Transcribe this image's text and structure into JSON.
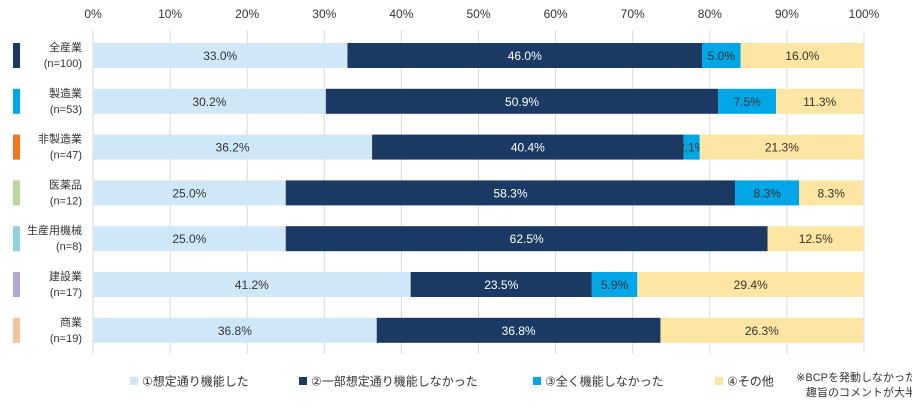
{
  "chart_data": {
    "type": "stacked-bar-horizontal",
    "xlim": [
      0,
      100
    ],
    "x_ticks": [
      "0%",
      "10%",
      "20%",
      "30%",
      "40%",
      "50%",
      "60%",
      "70%",
      "80%",
      "90%",
      "100%"
    ],
    "grid": true,
    "legend_position": "bottom",
    "categories": [
      {
        "name": "全産業",
        "n": "(n=100)",
        "marker_color": "#1b3a63"
      },
      {
        "name": "製造業",
        "n": "(n=53)",
        "marker_color": "#00a6e6"
      },
      {
        "name": "非製造業",
        "n": "(n=47)",
        "marker_color": "#f07820"
      },
      {
        "name": "医薬品",
        "n": "(n=12)",
        "marker_color": "#b9d79a"
      },
      {
        "name": "生産用機械",
        "n": "(n=8)",
        "marker_color": "#8fd3de"
      },
      {
        "name": "建設業",
        "n": "(n=17)",
        "marker_color": "#b3a6d4"
      },
      {
        "name": "商業",
        "n": "(n=19)",
        "marker_color": "#f5c49a"
      }
    ],
    "series": [
      {
        "name": "①想定通り機能した",
        "color": "#cfe7f7",
        "label_color": "#333333",
        "values": [
          33.0,
          30.2,
          36.2,
          25.0,
          25.0,
          41.2,
          36.8
        ]
      },
      {
        "name": "②一部想定通り機能しなかった",
        "color": "#1b3a63",
        "label_color": "#ffffff",
        "values": [
          46.0,
          50.9,
          40.4,
          58.3,
          62.5,
          23.5,
          36.8
        ]
      },
      {
        "name": "③全く機能しなかった",
        "color": "#00a6e6",
        "label_color": "#333333",
        "values": [
          5.0,
          7.5,
          2.1,
          8.3,
          0,
          5.9,
          0
        ]
      },
      {
        "name": "④その他",
        "color": "#fde5a3",
        "label_color": "#333333",
        "values": [
          16.0,
          11.3,
          21.3,
          8.3,
          12.5,
          29.4,
          26.3
        ]
      }
    ],
    "data_labels": [
      [
        "33.0%",
        "46.0%",
        "5.0%",
        "16.0%"
      ],
      [
        "30.2%",
        "50.9%",
        "7.5%",
        "11.3%"
      ],
      [
        "36.2%",
        "40.4%",
        "2.1%",
        "21.3%"
      ],
      [
        "25.0%",
        "58.3%",
        "8.3%",
        "8.3%"
      ],
      [
        "25.0%",
        "62.5%",
        "",
        "12.5%"
      ],
      [
        "41.2%",
        "23.5%",
        "5.9%",
        "29.4%"
      ],
      [
        "36.8%",
        "36.8%",
        "",
        "26.3%"
      ]
    ],
    "note": "※BCPを発動しなかった\n趣旨のコメントが大半"
  }
}
